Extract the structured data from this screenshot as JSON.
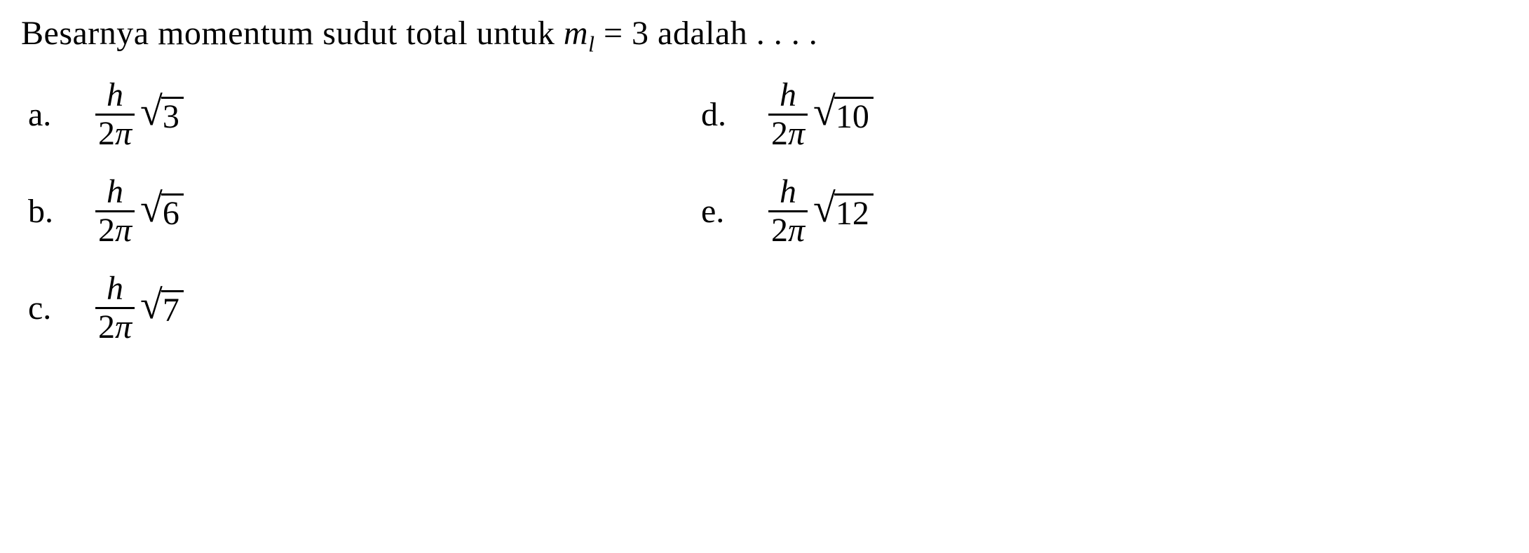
{
  "question": {
    "prefix": "Besarnya momentum sudut total untuk ",
    "variable": "m",
    "subscript": "l",
    "relation": " = 3 adalah . . . .",
    "text_color": "#000000",
    "fontsize": 48,
    "background_color": "#ffffff"
  },
  "fraction": {
    "numerator": "h",
    "denominator_num": "2",
    "denominator_sym": "π"
  },
  "sqrt_symbol": "√",
  "options": {
    "a": {
      "label": "a.",
      "radicand": "3"
    },
    "b": {
      "label": "b.",
      "radicand": "6"
    },
    "c": {
      "label": "c.",
      "radicand": "7"
    },
    "d": {
      "label": "d.",
      "radicand": "10"
    },
    "e": {
      "label": "e.",
      "radicand": "12"
    }
  },
  "layout": {
    "columns": 2,
    "col1_width": 960,
    "row_gap": 35,
    "line_color": "#000000",
    "line_width": 3
  }
}
